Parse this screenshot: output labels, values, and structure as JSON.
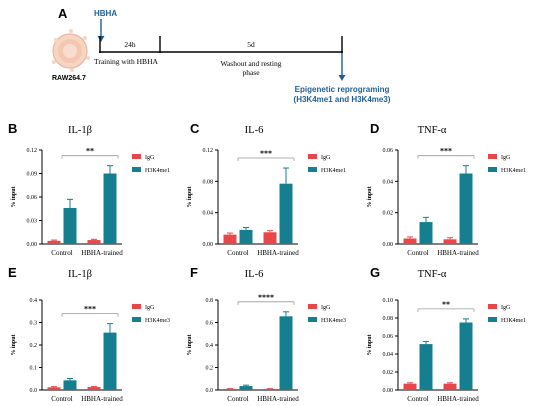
{
  "colors": {
    "igg": "#e8474a",
    "h3k": "#167f8f",
    "accent": "#1f5f96",
    "axis": "#000000"
  },
  "schematic": {
    "letter": "A",
    "cell_label": "RAW264.7",
    "agent_label": "HBHA",
    "step1_duration": "24h",
    "step2_duration": "5d",
    "step1_label": "Training with HBHA",
    "step2_label_line1": "Washout and resting",
    "step2_label_line2": "phase",
    "outcome_line1": "Epigenetic reprograming",
    "outcome_line2": "(H3K4me1 and H3K4me3)"
  },
  "chart_data": [
    {
      "panel": "B",
      "type": "bar",
      "title": "IL-1β",
      "ylabel": "% input",
      "categories": [
        "Control",
        "HBHA-trained"
      ],
      "series": [
        {
          "name": "IgG",
          "values": [
            0.004,
            0.005
          ],
          "errors": [
            0.001,
            0.001
          ]
        },
        {
          "name": "H3K4me1",
          "values": [
            0.046,
            0.09
          ],
          "errors": [
            0.011,
            0.01
          ]
        }
      ],
      "ylim": [
        0,
        0.12
      ],
      "ticks": [
        "0.00",
        "0.03",
        "0.06",
        "0.09",
        "0.12"
      ],
      "tick_values": [
        0,
        0.03,
        0.06,
        0.09,
        0.12
      ],
      "significance": "**"
    },
    {
      "panel": "C",
      "type": "bar",
      "title": "IL-6",
      "ylabel": "% input",
      "categories": [
        "Control",
        "HBHA-trained"
      ],
      "series": [
        {
          "name": "IgG",
          "values": [
            0.012,
            0.015
          ],
          "errors": [
            0.002,
            0.002
          ]
        },
        {
          "name": "H3K4me1",
          "values": [
            0.018,
            0.077
          ],
          "errors": [
            0.003,
            0.02
          ]
        }
      ],
      "ylim": [
        0,
        0.12
      ],
      "ticks": [
        "0.00",
        "0.04",
        "0.08",
        "0.12"
      ],
      "tick_values": [
        0,
        0.04,
        0.08,
        0.12
      ],
      "significance": "***"
    },
    {
      "panel": "D",
      "type": "bar",
      "title": "TNF-α",
      "ylabel": "% input",
      "categories": [
        "Control",
        "HBHA-trained"
      ],
      "series": [
        {
          "name": "IgG",
          "values": [
            0.0035,
            0.003
          ],
          "errors": [
            0.001,
            0.001
          ]
        },
        {
          "name": "H3K4me1",
          "values": [
            0.014,
            0.045
          ],
          "errors": [
            0.003,
            0.005
          ]
        }
      ],
      "ylim": [
        0,
        0.06
      ],
      "ticks": [
        "0.00",
        "0.02",
        "0.04",
        "0.06"
      ],
      "tick_values": [
        0,
        0.02,
        0.04,
        0.06
      ],
      "significance": "***"
    },
    {
      "panel": "E",
      "type": "bar",
      "title": "IL-1β",
      "ylabel": "% input",
      "categories": [
        "Control",
        "HBHA-trained"
      ],
      "series": [
        {
          "name": "IgG",
          "values": [
            0.012,
            0.013
          ],
          "errors": [
            0.003,
            0.003
          ]
        },
        {
          "name": "H3K4me3",
          "values": [
            0.043,
            0.255
          ],
          "errors": [
            0.008,
            0.04
          ]
        }
      ],
      "ylim": [
        0,
        0.4
      ],
      "ticks": [
        "0.0",
        "0.1",
        "0.2",
        "0.3",
        "0.4"
      ],
      "tick_values": [
        0,
        0.1,
        0.2,
        0.3,
        0.4
      ],
      "significance": "***"
    },
    {
      "panel": "F",
      "type": "bar",
      "title": "IL-6",
      "ylabel": "% input",
      "categories": [
        "Control",
        "HBHA-trained"
      ],
      "series": [
        {
          "name": "IgG",
          "values": [
            0.01,
            0.01
          ],
          "errors": [
            0.002,
            0.002
          ]
        },
        {
          "name": "H3K4me3",
          "values": [
            0.035,
            0.655
          ],
          "errors": [
            0.008,
            0.04
          ]
        }
      ],
      "ylim": [
        0,
        0.8
      ],
      "ticks": [
        "0.0",
        "0.2",
        "0.4",
        "0.6",
        "0.8"
      ],
      "tick_values": [
        0,
        0.2,
        0.4,
        0.6,
        0.8
      ],
      "significance": "****"
    },
    {
      "panel": "G",
      "type": "bar",
      "title": "TNF-α",
      "ylabel": "% input",
      "categories": [
        "Control",
        "HBHA-trained"
      ],
      "series": [
        {
          "name": "IgG",
          "values": [
            0.007,
            0.007
          ],
          "errors": [
            0.001,
            0.001
          ]
        },
        {
          "name": "H3K4me1",
          "values": [
            0.051,
            0.075
          ],
          "errors": [
            0.003,
            0.004
          ]
        }
      ],
      "ylim": [
        0,
        0.1
      ],
      "ticks": [
        "0.00",
        "0.02",
        "0.04",
        "0.06",
        "0.08",
        "0.10"
      ],
      "tick_values": [
        0,
        0.02,
        0.04,
        0.06,
        0.08,
        0.1
      ],
      "significance": "**"
    }
  ]
}
